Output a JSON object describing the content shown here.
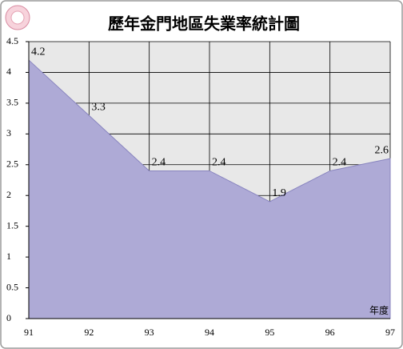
{
  "chart_data": {
    "type": "area",
    "title": "歷年金門地區失業率統計圖",
    "categories": [
      "91",
      "92",
      "93",
      "94",
      "95",
      "96",
      "97"
    ],
    "values": [
      4.2,
      3.3,
      2.4,
      2.4,
      1.9,
      2.4,
      2.6
    ],
    "color": "#aeaad6",
    "x_label": "年度",
    "ylim": [
      0,
      4.5
    ],
    "yticks": [
      0,
      0.5,
      1,
      1.5,
      2,
      2.5,
      3,
      3.5,
      4,
      4.5
    ],
    "grid": true
  }
}
